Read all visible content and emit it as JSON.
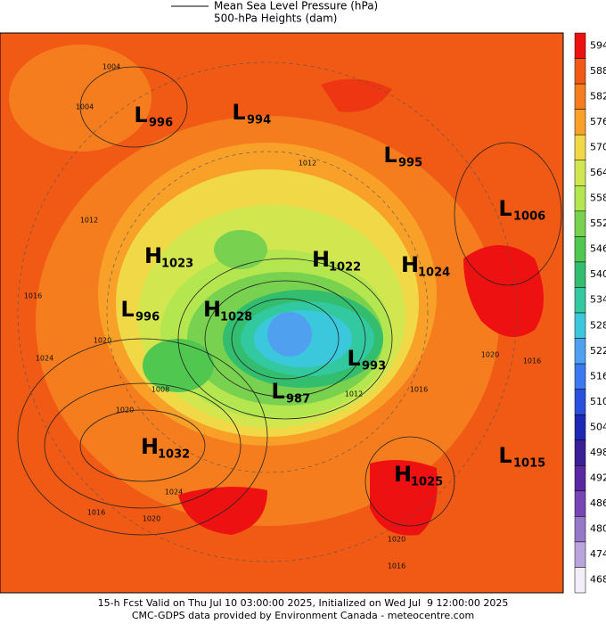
{
  "legend": {
    "line_label": "Mean Sea Level Pressure (hPa)",
    "fill_label": "500-hPa Heights (dam)"
  },
  "colorbar": {
    "levels": [
      594,
      588,
      582,
      576,
      570,
      564,
      558,
      552,
      546,
      540,
      534,
      528,
      522,
      516,
      510,
      504,
      498,
      492,
      486,
      480,
      474,
      468
    ],
    "colors": [
      "#ee1111",
      "#f05a14",
      "#f57d1e",
      "#f8a028",
      "#f0d846",
      "#d2e650",
      "#b4e650",
      "#78d250",
      "#50c850",
      "#32be6e",
      "#32c8a0",
      "#3cc8dc",
      "#50a0f0",
      "#3c78f0",
      "#2850dc",
      "#1e28b4",
      "#3c1e96",
      "#5a28a0",
      "#7846b4",
      "#9678c8",
      "#b9a5dc",
      "#f3eef8"
    ]
  },
  "centers": [
    {
      "type": "L",
      "value": 996
    },
    {
      "type": "L",
      "value": 994
    },
    {
      "type": "L",
      "value": 995
    },
    {
      "type": "L",
      "value": 1006
    },
    {
      "type": "H",
      "value": 1023
    },
    {
      "type": "H",
      "value": 1022
    },
    {
      "type": "H",
      "value": 1024
    },
    {
      "type": "L",
      "value": 996
    },
    {
      "type": "H",
      "value": 1028
    },
    {
      "type": "L",
      "value": 993
    },
    {
      "type": "L",
      "value": 987
    },
    {
      "type": "H",
      "value": 1032
    },
    {
      "type": "L",
      "value": 1015
    },
    {
      "type": "H",
      "value": 1025
    }
  ],
  "contour_labels": [
    1004,
    1004,
    1012,
    1016,
    1020,
    1024,
    1020,
    1024,
    1016,
    1020,
    1020,
    1016,
    1012,
    1008,
    1020,
    1016,
    1016,
    1012
  ],
  "footer": [
    "15-h Fcst Valid on Thu Jul 10 03:00:00 2025, Initialized on Wed Jul  9 12:00:00 2025",
    "CMC-GDPS data provided by Environment Canada - meteocentre.com"
  ]
}
